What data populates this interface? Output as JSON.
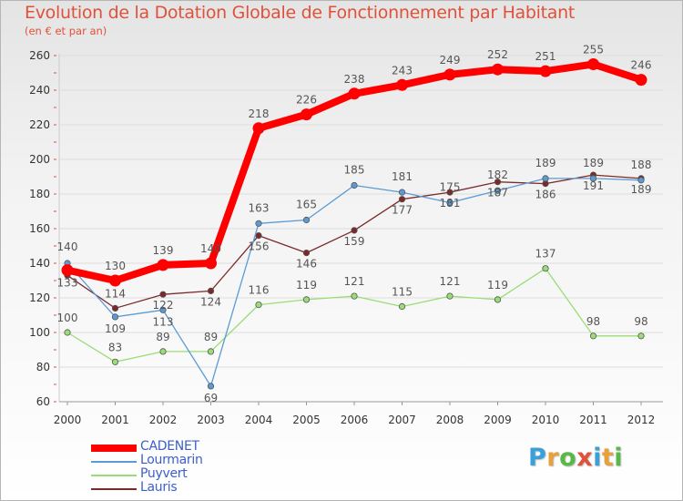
{
  "header": {
    "title": "Evolution de la Dotation Globale de Fonctionnement par Habitant",
    "subtitle": "(en € et par an)"
  },
  "logo": {
    "text": "Proxiti",
    "letters": [
      "P",
      "r",
      "o",
      "x",
      "i",
      "t",
      "i"
    ],
    "letter_colors": [
      "#3aa0d8",
      "#e8a13a",
      "#57b947",
      "#e0513a",
      "#3aa0d8",
      "#e8a13a",
      "#57b947"
    ]
  },
  "chart_data": {
    "type": "line",
    "title": "Evolution de la Dotation Globale de Fonctionnement par Habitant",
    "subtitle": "(en € et par an)",
    "xlabel": "",
    "ylabel": "",
    "x": [
      "2000",
      "2001",
      "2002",
      "2003",
      "2004",
      "2005",
      "2006",
      "2007",
      "2008",
      "2009",
      "2010",
      "2011",
      "2012"
    ],
    "ylim": [
      60,
      260
    ],
    "yticks": [
      "60",
      "80",
      "100",
      "120",
      "140",
      "160",
      "180",
      "200",
      "220",
      "240",
      "260"
    ],
    "grid": "horizontal",
    "legend_position": "bottom-left",
    "series": [
      {
        "name": "CADENET",
        "color": "#ff0000",
        "values": [
          136,
          130,
          139,
          140,
          218,
          226,
          238,
          243,
          249,
          252,
          251,
          255,
          246
        ],
        "labels": [
          "",
          "130",
          "139",
          "140",
          "218",
          "226",
          "238",
          "243",
          "249",
          "252",
          "251",
          "255",
          "246"
        ]
      },
      {
        "name": "Lourmarin",
        "color": "#5b9bd5",
        "values": [
          140,
          109,
          113,
          69,
          163,
          165,
          185,
          181,
          175,
          182,
          189,
          189,
          188
        ],
        "labels": [
          "140",
          "109",
          "113",
          "69",
          "163",
          "165",
          "185",
          "181",
          "175",
          "182",
          "189",
          "189",
          "188"
        ]
      },
      {
        "name": "Puyvert",
        "color": "#99dd77",
        "values": [
          100,
          83,
          89,
          89,
          116,
          119,
          121,
          115,
          121,
          119,
          137,
          98,
          98
        ],
        "labels": [
          "100",
          "83",
          "89",
          "89",
          "116",
          "119",
          "121",
          "115",
          "121",
          "119",
          "137",
          "98",
          "98"
        ]
      },
      {
        "name": "Lauris",
        "color": "#7b2a2a",
        "values": [
          133,
          114,
          122,
          124,
          156,
          146,
          159,
          177,
          181,
          187,
          186,
          191,
          189
        ],
        "labels": [
          "133",
          "114",
          "122",
          "124",
          "156",
          "146",
          "159",
          "177",
          "181",
          "187",
          "186",
          "191",
          "189"
        ]
      }
    ]
  }
}
